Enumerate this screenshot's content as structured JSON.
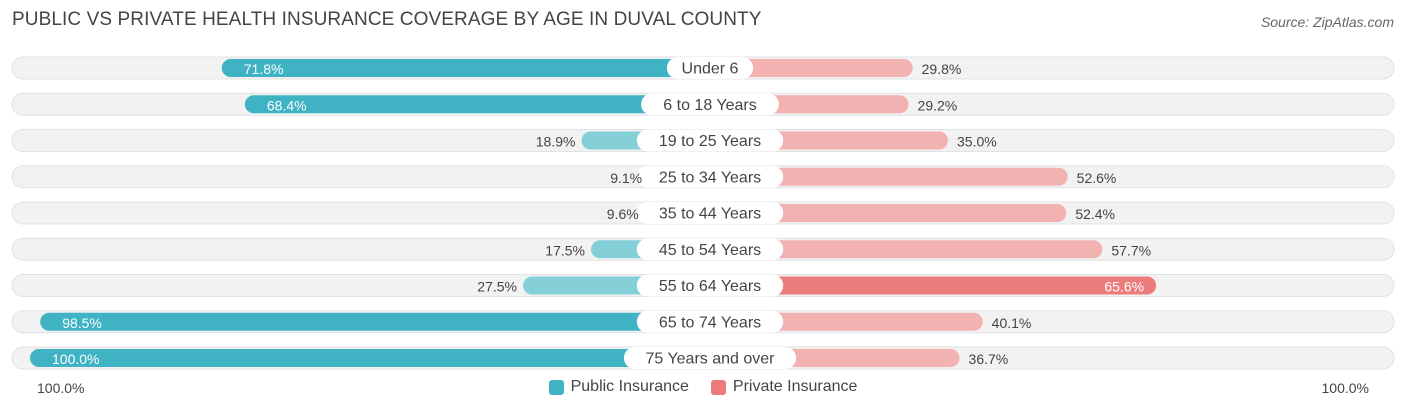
{
  "header": {
    "title": "PUBLIC VS PRIVATE HEALTH INSURANCE COVERAGE BY AGE IN DUVAL COUNTY",
    "source": "Source: ZipAtlas.com"
  },
  "colors": {
    "public": "#3fb3c3",
    "public_light": "#85cfd8",
    "private": "#ec7b7b",
    "private_light": "#f3b2b2",
    "track": "#f2f2f2"
  },
  "chart_data": {
    "type": "bar",
    "orientation": "diverging-horizontal",
    "title": "PUBLIC VS PRIVATE HEALTH INSURANCE COVERAGE BY AGE IN DUVAL COUNTY",
    "categories": [
      "Under 6",
      "6 to 18 Years",
      "19 to 25 Years",
      "25 to 34 Years",
      "35 to 44 Years",
      "45 to 54 Years",
      "55 to 64 Years",
      "65 to 74 Years",
      "75 Years and over"
    ],
    "series": [
      {
        "name": "Public Insurance",
        "values": [
          71.8,
          68.4,
          18.9,
          9.1,
          9.6,
          17.5,
          27.5,
          98.5,
          100.0
        ],
        "labels": [
          "71.8%",
          "68.4%",
          "18.9%",
          "9.1%",
          "9.6%",
          "17.5%",
          "27.5%",
          "98.5%",
          "100.0%"
        ]
      },
      {
        "name": "Private Insurance",
        "values": [
          29.8,
          29.2,
          35.0,
          52.6,
          52.4,
          57.7,
          65.6,
          40.1,
          36.7
        ],
        "labels": [
          "29.8%",
          "29.2%",
          "35.0%",
          "52.6%",
          "52.4%",
          "57.7%",
          "65.6%",
          "40.1%",
          "36.7%"
        ]
      }
    ],
    "xlim": [
      0,
      100
    ],
    "axis_left_label": "100.0%",
    "axis_right_label": "100.0%",
    "legend_position": "bottom-center"
  }
}
